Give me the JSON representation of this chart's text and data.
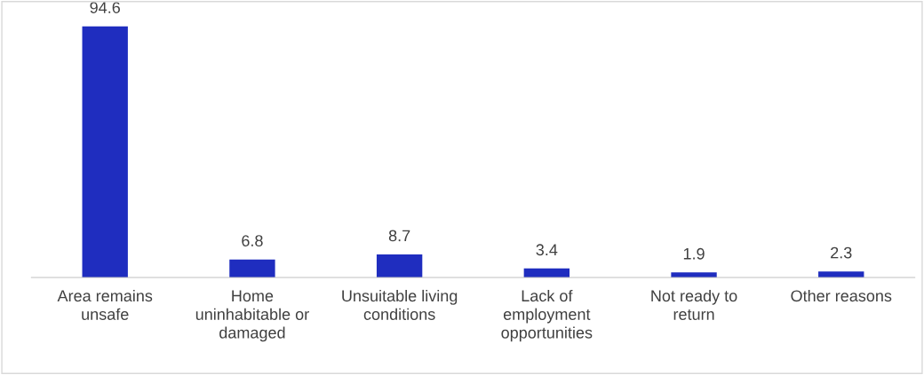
{
  "chart_data": {
    "type": "bar",
    "categories": [
      "Area remains\nunsafe",
      "Home\nuninhabitable or\ndamaged",
      "Unsuitable living\nconditions",
      "Lack of\nemployment\nopportunities",
      "Not ready to\nreturn",
      "Other reasons"
    ],
    "values": [
      94.6,
      6.8,
      8.7,
      3.4,
      1.9,
      2.3
    ],
    "color": "#1f2dbf",
    "data_labels": true,
    "grid": false,
    "legend": false
  }
}
